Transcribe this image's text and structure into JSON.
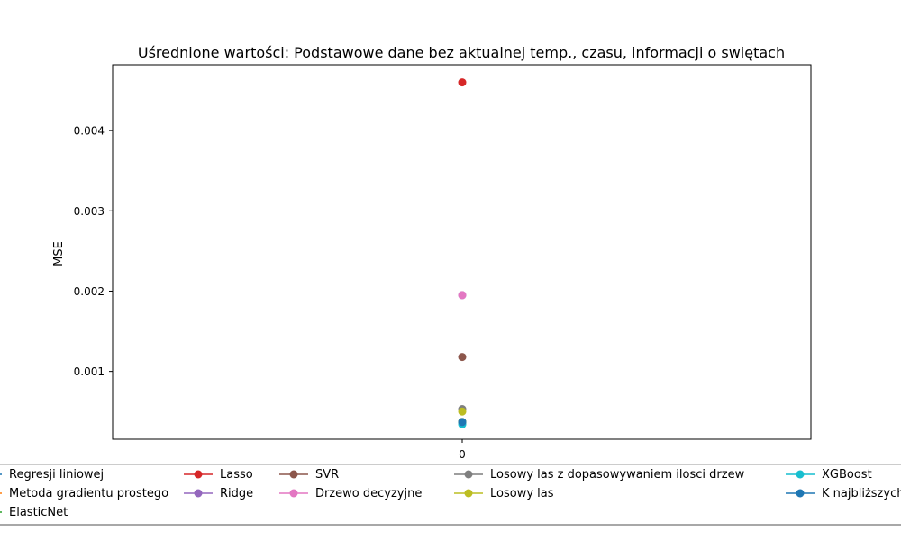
{
  "chart_data": {
    "type": "scatter",
    "title": "Uśrednione wartości: Podstawowe dane bez aktualnej temp., czasu, informacji o swiętach",
    "xlabel": "",
    "ylabel": "MSE",
    "x_ticks": [
      "0"
    ],
    "y_ticks": [
      "0.001",
      "0.002",
      "0.003",
      "0.004"
    ],
    "ylim": [
      0.000155,
      0.00482
    ],
    "legend_placement": "bottom",
    "series": [
      {
        "name": "Regresji liniowej",
        "color": "#1f77b4",
        "x": 0,
        "value": 0.00037
      },
      {
        "name": "Metoda gradientu prostego",
        "color": "#ff7f0e",
        "x": 0,
        "value": 0.00037
      },
      {
        "name": "ElasticNet",
        "color": "#2ca02c",
        "x": 0,
        "value": 0.00037
      },
      {
        "name": "Lasso",
        "color": "#d62728",
        "x": 0,
        "value": 0.0046
      },
      {
        "name": "Ridge",
        "color": "#9467bd",
        "x": 0,
        "value": 0.00195
      },
      {
        "name": "SVR",
        "color": "#8c564b",
        "x": 0,
        "value": 0.00118
      },
      {
        "name": "Drzewo decyzyjne",
        "color": "#e377c2",
        "x": 0,
        "value": 0.00195
      },
      {
        "name": "Losowy las z dopasowywaniem ilosci drzew",
        "color": "#7f7f7f",
        "x": 0,
        "value": 0.00053
      },
      {
        "name": "Losowy las",
        "color": "#bcbd22",
        "x": 0,
        "value": 0.0005
      },
      {
        "name": "XGBoost",
        "color": "#17becf",
        "x": 0,
        "value": 0.00034
      },
      {
        "name": "K najbliższych",
        "color": "#1f77b4",
        "x": 0,
        "value": 0.00037
      }
    ]
  }
}
